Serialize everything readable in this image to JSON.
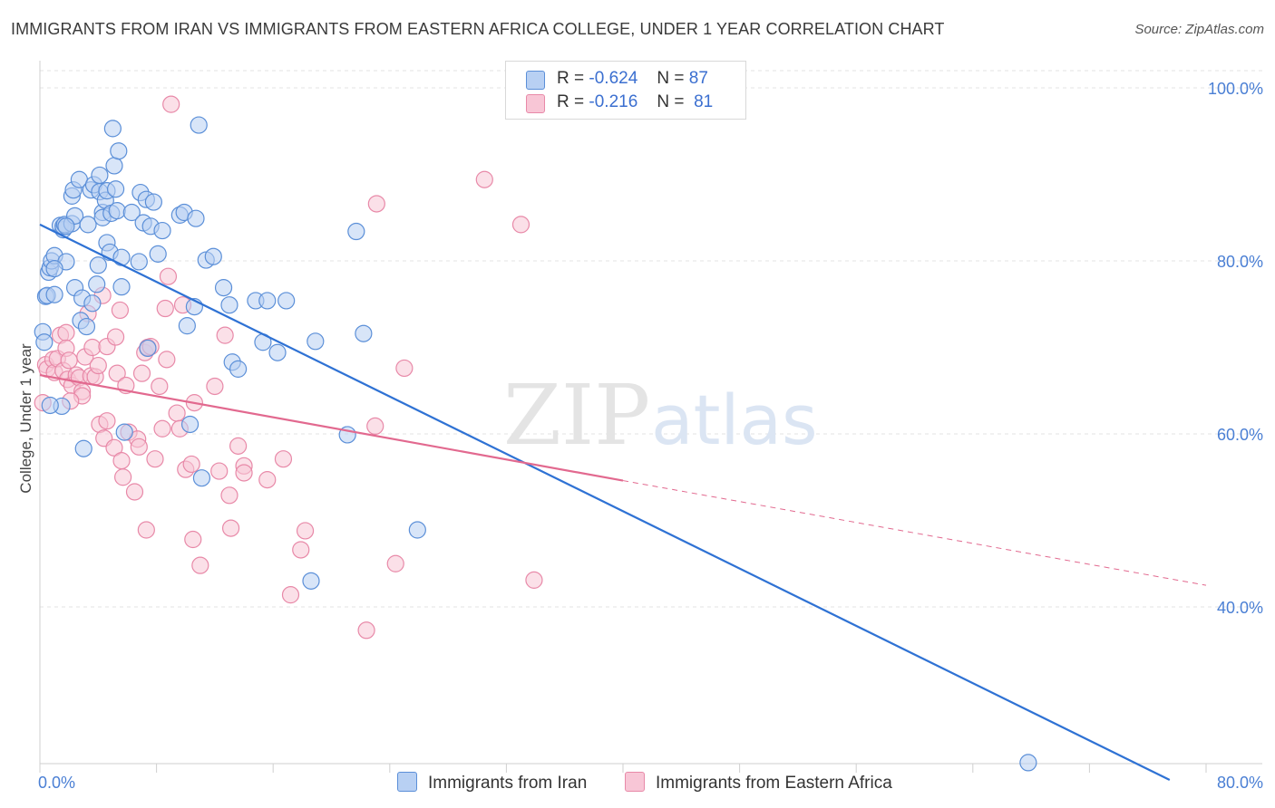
{
  "title": "IMMIGRANTS FROM IRAN VS IMMIGRANTS FROM EASTERN AFRICA COLLEGE, UNDER 1 YEAR CORRELATION CHART",
  "source": "Source: ZipAtlas.com",
  "watermark": {
    "zip": "ZIP",
    "atlas": "atlas"
  },
  "legend": {
    "iran": {
      "r_label": "R =",
      "r_value": "-0.624",
      "n_label": "N =",
      "n_value": "87"
    },
    "eafrica": {
      "r_label": "R =",
      "r_value": "-0.216",
      "n_label": "N =",
      "n_value": "81"
    }
  },
  "colors": {
    "iran_fill": "#b8d0f3",
    "iran_stroke": "#5b8fd8",
    "iran_line": "#2f72d4",
    "eafrica_fill": "#f8c6d6",
    "eafrica_stroke": "#e889a8",
    "eafrica_line": "#e2698f",
    "grid": "#e3e3e3",
    "tick_text": "#4a7fd4"
  },
  "chart_data": {
    "type": "scatter",
    "title": "IMMIGRANTS FROM IRAN VS IMMIGRANTS FROM EASTERN AFRICA COLLEGE, UNDER 1 YEAR CORRELATION CHART",
    "xlabel": "",
    "ylabel": "College, Under 1 year",
    "xlim": [
      0,
      80
    ],
    "ylim": [
      20,
      104
    ],
    "x_ticks": [
      "0.0%",
      "80.0%"
    ],
    "y_ticks": [
      {
        "value": 100,
        "label": "100.0%"
      },
      {
        "value": 80,
        "label": "80.0%"
      },
      {
        "value": 60,
        "label": "60.0%"
      },
      {
        "value": 40,
        "label": "40.0%"
      }
    ],
    "grid": "horizontal dashed",
    "legend_position": "top-center",
    "series": [
      {
        "name": "Immigrants from Iran",
        "trend": {
          "x": [
            0,
            77.5
          ],
          "y": [
            84.2,
            20
          ],
          "style": "solid"
        },
        "points": [
          [
            0.2,
            71.8
          ],
          [
            0.3,
            70.6
          ],
          [
            0.4,
            75.9
          ],
          [
            0.5,
            76.0
          ],
          [
            0.6,
            78.7
          ],
          [
            0.7,
            79.2
          ],
          [
            0.8,
            80.0
          ],
          [
            1.0,
            80.6
          ],
          [
            1.4,
            84.1
          ],
          [
            1.6,
            83.6
          ],
          [
            1.6,
            84.0
          ],
          [
            1.7,
            84.2
          ],
          [
            1.8,
            79.9
          ],
          [
            1.0,
            76.1
          ],
          [
            1.0,
            79.1
          ],
          [
            1.5,
            63.2
          ],
          [
            2.2,
            84.3
          ],
          [
            2.2,
            87.5
          ],
          [
            2.4,
            85.2
          ],
          [
            2.3,
            88.2
          ],
          [
            2.7,
            89.4
          ],
          [
            2.4,
            76.9
          ],
          [
            2.8,
            73.1
          ],
          [
            2.9,
            75.7
          ],
          [
            3.0,
            58.3
          ],
          [
            3.2,
            72.4
          ],
          [
            3.3,
            84.2
          ],
          [
            3.5,
            88.2
          ],
          [
            3.6,
            75.1
          ],
          [
            3.7,
            88.8
          ],
          [
            3.9,
            77.3
          ],
          [
            4.0,
            79.5
          ],
          [
            4.1,
            88.0
          ],
          [
            4.1,
            89.9
          ],
          [
            4.3,
            85.6
          ],
          [
            4.3,
            85.0
          ],
          [
            4.5,
            87.0
          ],
          [
            4.6,
            88.1
          ],
          [
            4.6,
            82.1
          ],
          [
            4.8,
            81.0
          ],
          [
            4.9,
            85.5
          ],
          [
            5.0,
            95.3
          ],
          [
            5.1,
            91.0
          ],
          [
            5.2,
            88.3
          ],
          [
            5.3,
            85.8
          ],
          [
            5.4,
            92.7
          ],
          [
            5.6,
            80.4
          ],
          [
            5.6,
            77.0
          ],
          [
            5.8,
            60.2
          ],
          [
            6.3,
            85.6
          ],
          [
            6.8,
            79.9
          ],
          [
            6.9,
            87.9
          ],
          [
            7.1,
            84.4
          ],
          [
            7.3,
            87.1
          ],
          [
            7.4,
            69.9
          ],
          [
            7.6,
            84.0
          ],
          [
            7.8,
            86.8
          ],
          [
            8.1,
            80.8
          ],
          [
            8.4,
            83.5
          ],
          [
            9.6,
            85.3
          ],
          [
            9.9,
            85.6
          ],
          [
            10.1,
            72.5
          ],
          [
            10.3,
            61.1
          ],
          [
            10.6,
            74.7
          ],
          [
            10.7,
            84.9
          ],
          [
            10.9,
            95.7
          ],
          [
            11.1,
            54.9
          ],
          [
            11.4,
            80.1
          ],
          [
            11.9,
            80.5
          ],
          [
            12.6,
            76.9
          ],
          [
            13.0,
            74.9
          ],
          [
            13.2,
            68.3
          ],
          [
            13.6,
            67.5
          ],
          [
            14.8,
            75.4
          ],
          [
            15.3,
            70.6
          ],
          [
            15.6,
            75.4
          ],
          [
            16.3,
            69.4
          ],
          [
            16.9,
            75.4
          ],
          [
            18.6,
            43.0
          ],
          [
            18.9,
            70.7
          ],
          [
            21.1,
            59.9
          ],
          [
            22.2,
            71.6
          ],
          [
            21.7,
            83.4
          ],
          [
            25.9,
            48.9
          ],
          [
            67.8,
            22.0
          ],
          [
            0.7,
            63.3
          ],
          [
            1.8,
            84.0
          ]
        ]
      },
      {
        "name": "Immigrants from Eastern Africa",
        "trend": {
          "x": [
            0,
            40
          ],
          "y": [
            66.8,
            54.6
          ],
          "x_dashed_end": 80,
          "y_dashed_end": 42.5,
          "style": "solid-then-dashed"
        },
        "points": [
          [
            0.2,
            63.6
          ],
          [
            0.4,
            68.0
          ],
          [
            0.5,
            67.5
          ],
          [
            0.9,
            68.6
          ],
          [
            1.0,
            67.1
          ],
          [
            1.2,
            68.7
          ],
          [
            1.4,
            71.4
          ],
          [
            1.6,
            67.3
          ],
          [
            1.8,
            71.7
          ],
          [
            1.8,
            69.9
          ],
          [
            1.9,
            66.3
          ],
          [
            2.0,
            68.5
          ],
          [
            2.2,
            65.6
          ],
          [
            2.5,
            66.8
          ],
          [
            2.7,
            66.5
          ],
          [
            2.9,
            64.9
          ],
          [
            2.9,
            64.4
          ],
          [
            3.1,
            68.9
          ],
          [
            3.3,
            73.9
          ],
          [
            3.5,
            66.7
          ],
          [
            3.6,
            70.0
          ],
          [
            3.8,
            66.6
          ],
          [
            4.0,
            67.9
          ],
          [
            4.1,
            61.1
          ],
          [
            4.3,
            76.0
          ],
          [
            4.4,
            59.5
          ],
          [
            4.6,
            61.5
          ],
          [
            4.6,
            70.1
          ],
          [
            5.1,
            58.4
          ],
          [
            5.2,
            71.2
          ],
          [
            5.3,
            67.0
          ],
          [
            5.5,
            74.3
          ],
          [
            5.6,
            56.9
          ],
          [
            5.7,
            55.0
          ],
          [
            5.9,
            65.6
          ],
          [
            6.1,
            60.2
          ],
          [
            6.5,
            53.3
          ],
          [
            6.7,
            59.4
          ],
          [
            7.0,
            67.0
          ],
          [
            7.2,
            69.4
          ],
          [
            7.3,
            48.9
          ],
          [
            7.4,
            70.0
          ],
          [
            7.6,
            70.1
          ],
          [
            7.9,
            57.1
          ],
          [
            8.2,
            65.5
          ],
          [
            8.4,
            60.6
          ],
          [
            8.6,
            74.5
          ],
          [
            8.7,
            68.6
          ],
          [
            8.8,
            78.2
          ],
          [
            9.0,
            98.1
          ],
          [
            9.4,
            62.4
          ],
          [
            9.6,
            60.6
          ],
          [
            9.8,
            74.9
          ],
          [
            10.0,
            55.9
          ],
          [
            10.4,
            56.5
          ],
          [
            10.5,
            47.8
          ],
          [
            10.6,
            63.6
          ],
          [
            11.0,
            44.8
          ],
          [
            12.3,
            55.7
          ],
          [
            12.7,
            71.4
          ],
          [
            13.0,
            52.9
          ],
          [
            13.1,
            49.1
          ],
          [
            13.6,
            58.6
          ],
          [
            14.0,
            56.3
          ],
          [
            14.0,
            55.5
          ],
          [
            15.6,
            54.7
          ],
          [
            16.7,
            57.1
          ],
          [
            17.2,
            41.4
          ],
          [
            17.9,
            46.6
          ],
          [
            18.2,
            48.8
          ],
          [
            22.4,
            37.3
          ],
          [
            23.0,
            60.9
          ],
          [
            23.1,
            86.6
          ],
          [
            24.4,
            45.0
          ],
          [
            25.0,
            67.6
          ],
          [
            30.5,
            89.4
          ],
          [
            33.0,
            84.2
          ],
          [
            33.9,
            43.1
          ],
          [
            2.1,
            63.8
          ],
          [
            6.8,
            58.5
          ],
          [
            12.0,
            65.5
          ]
        ]
      }
    ]
  },
  "bottom_legend": {
    "iran_label": "Immigrants from Iran",
    "eafrica_label": "Immigrants from Eastern Africa"
  }
}
